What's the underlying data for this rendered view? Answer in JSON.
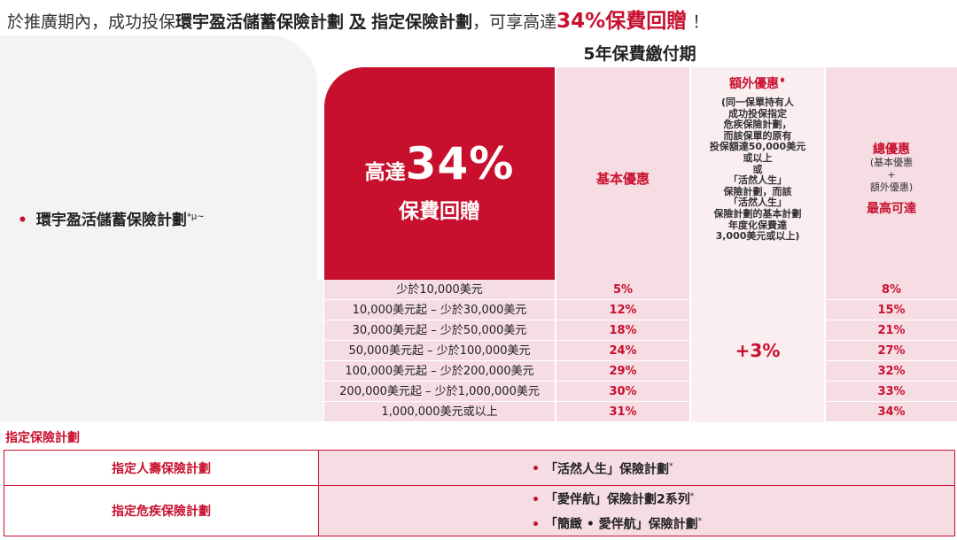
{
  "headline": {
    "prefix": "於推廣期內，成功投保",
    "plan_a": "環宇盈活儲蓄保險計劃",
    "conj": "及",
    "plan_b": "指定保險計劃",
    "mid": "，可享高達",
    "highlight": "34%保費回贈",
    "suffix": "！"
  },
  "plan": {
    "name": "環宇盈活儲蓄保險計劃",
    "mark": "*µ~",
    "bullet": "•"
  },
  "payment_period": "5年保費繳付期",
  "promo_box": {
    "up_to": "高達",
    "percent": "34%",
    "label": "保費回贈"
  },
  "columns": {
    "basic": "基本優惠",
    "extra_title": "額外優惠",
    "extra_mark": "♦",
    "extra_note": [
      "(同一保單持有人",
      "成功投保指定",
      "危疾保險計劃，",
      "而該保單的原有",
      "投保額達50,000美元",
      "或以上",
      "或",
      "「活然人生」",
      "保險計劃，而該",
      "「活然人生」",
      "保險計劃的基本計劃",
      "年度化保費達",
      "3,000美元或以上)"
    ],
    "total_title": "總優惠",
    "total_sub": [
      "(基本優惠",
      "+",
      "額外優惠)"
    ],
    "total_max": "最高可達"
  },
  "tiers": [
    {
      "range": "少於10,000美元",
      "basic": "5%",
      "total": "8%"
    },
    {
      "range": "10,000美元起 – 少於30,000美元",
      "basic": "12%",
      "total": "15%"
    },
    {
      "range": "30,000美元起 – 少於50,000美元",
      "basic": "18%",
      "total": "21%"
    },
    {
      "range": "50,000美元起 – 少於100,000美元",
      "basic": "24%",
      "total": "27%"
    },
    {
      "range": "100,000美元起 – 少於200,000美元",
      "basic": "29%",
      "total": "32%"
    },
    {
      "range": "200,000美元起 – 少於1,000,000美元",
      "basic": "30%",
      "total": "33%"
    },
    {
      "range": "1,000,000美元或以上",
      "basic": "31%",
      "total": "34%"
    }
  ],
  "extra_value": "+3%",
  "designated": {
    "title": "指定保險計劃",
    "rows": [
      {
        "category": "指定人壽保險計劃",
        "plans": [
          {
            "bullet": "•",
            "name": "「活然人生」保險計劃",
            "mark": "*"
          }
        ]
      },
      {
        "category": "指定危疾保險計劃",
        "plans": [
          {
            "bullet": "•",
            "name": "「愛伴航」保險計劃2系列",
            "mark": "*"
          },
          {
            "bullet": "•",
            "name": "「簡緻 • 愛伴航」保險計劃",
            "mark": "*"
          }
        ]
      }
    ]
  },
  "colors": {
    "brand": "#c8102e",
    "pink": "#f6dde3",
    "light_pink": "#fbeef1",
    "grey": "#f3f3f3"
  }
}
